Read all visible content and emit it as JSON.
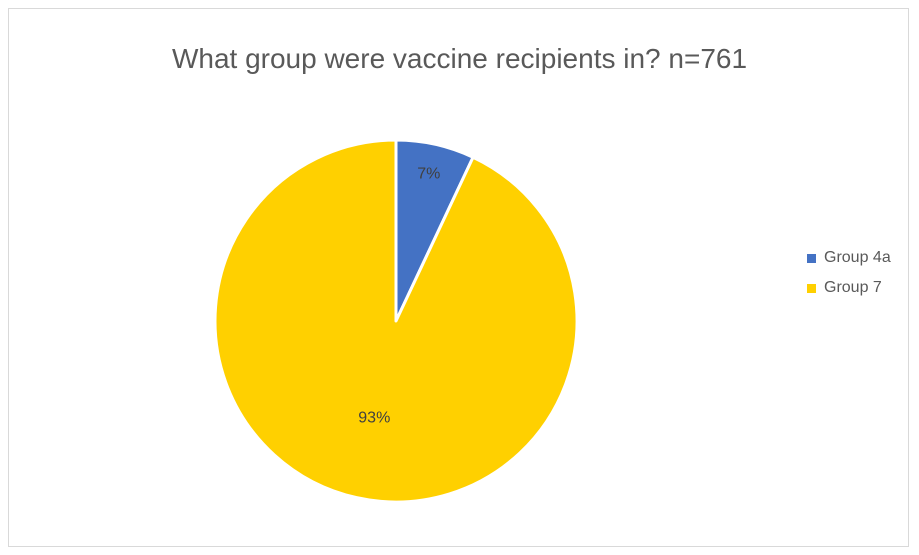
{
  "chart_data": {
    "type": "pie",
    "title": "What group were vaccine recipients in? n=761",
    "categories": [
      "Group 4a",
      "Group 7"
    ],
    "values": [
      7,
      93
    ],
    "labels": [
      "7%",
      "93%"
    ],
    "colors": [
      "#4472c4",
      "#ffd000"
    ],
    "legend": "right",
    "start_angle_deg": 0,
    "direction": "clockwise"
  }
}
